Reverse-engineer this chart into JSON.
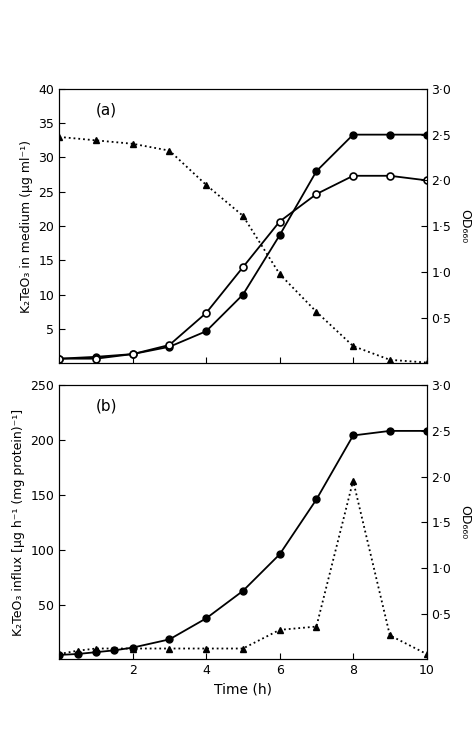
{
  "panel_a": {
    "title": "(a)",
    "ylabel_left": "K₂TeO₃ in medium (µg ml⁻¹)",
    "ylabel_right": "OD₆₆₀",
    "ylim_left": [
      0,
      40
    ],
    "ylim_right": [
      0,
      3.0
    ],
    "yticks_left": [
      5,
      10,
      15,
      20,
      25,
      30,
      35,
      40
    ],
    "yticks_right": [
      0.5,
      1.0,
      1.5,
      2.0,
      2.5,
      3.0
    ],
    "yticklabels_right": [
      "0·5",
      "1·0",
      "1·5",
      "2·0",
      "2·5",
      "3·0"
    ],
    "filled_circles_x": [
      0,
      1,
      2,
      3,
      4,
      5,
      6,
      7,
      8,
      9,
      10
    ],
    "filled_circles_od": [
      0.05,
      0.07,
      0.1,
      0.18,
      0.35,
      0.75,
      1.4,
      2.1,
      2.5,
      2.5,
      2.5
    ],
    "open_circles_x": [
      0,
      1,
      2,
      3,
      4,
      5,
      6,
      7,
      8,
      9,
      10
    ],
    "open_circles_od": [
      0.05,
      0.05,
      0.1,
      0.2,
      0.55,
      1.05,
      1.55,
      1.85,
      2.05,
      2.05,
      2.0
    ],
    "triangles_x": [
      0,
      1,
      2,
      3,
      4,
      5,
      6,
      7,
      8,
      9,
      10
    ],
    "triangles_y": [
      33,
      32.5,
      32,
      31,
      26,
      21.5,
      13,
      7.5,
      2.5,
      0.5,
      0.1
    ]
  },
  "panel_b": {
    "title": "(b)",
    "ylabel_left": "K₂TeO₃ influx [µg h⁻¹ (mg protein)⁻¹]",
    "ylabel_right": "OD₆₆₀",
    "ylim_left": [
      0,
      250
    ],
    "ylim_right": [
      0,
      3.0
    ],
    "yticks_left": [
      50,
      100,
      150,
      200,
      250
    ],
    "yticks_right": [
      0.5,
      1.0,
      1.5,
      2.0,
      2.5,
      3.0
    ],
    "yticklabels_right": [
      "0·5",
      "1·0",
      "1·5",
      "2·0",
      "2·5",
      "3·0"
    ],
    "filled_circles_x": [
      0,
      0.5,
      1,
      1.5,
      2,
      3,
      4,
      5,
      6,
      7,
      8,
      9,
      10
    ],
    "filled_circles_od": [
      0.05,
      0.06,
      0.08,
      0.1,
      0.13,
      0.22,
      0.45,
      0.75,
      1.15,
      1.75,
      2.45,
      2.5,
      2.5
    ],
    "triangles_x": [
      0,
      0.5,
      1,
      2,
      3,
      4,
      5,
      6,
      7,
      8,
      9,
      10
    ],
    "triangles_y": [
      5,
      8,
      10,
      10,
      10,
      10,
      10,
      27,
      30,
      163,
      22,
      5
    ]
  },
  "xlabel": "Time (h)",
  "xlim": [
    0,
    10
  ],
  "xticks": [
    0,
    2,
    4,
    6,
    8,
    10
  ],
  "xticklabels": [
    "",
    "2",
    "4",
    "6",
    "8",
    "10"
  ]
}
